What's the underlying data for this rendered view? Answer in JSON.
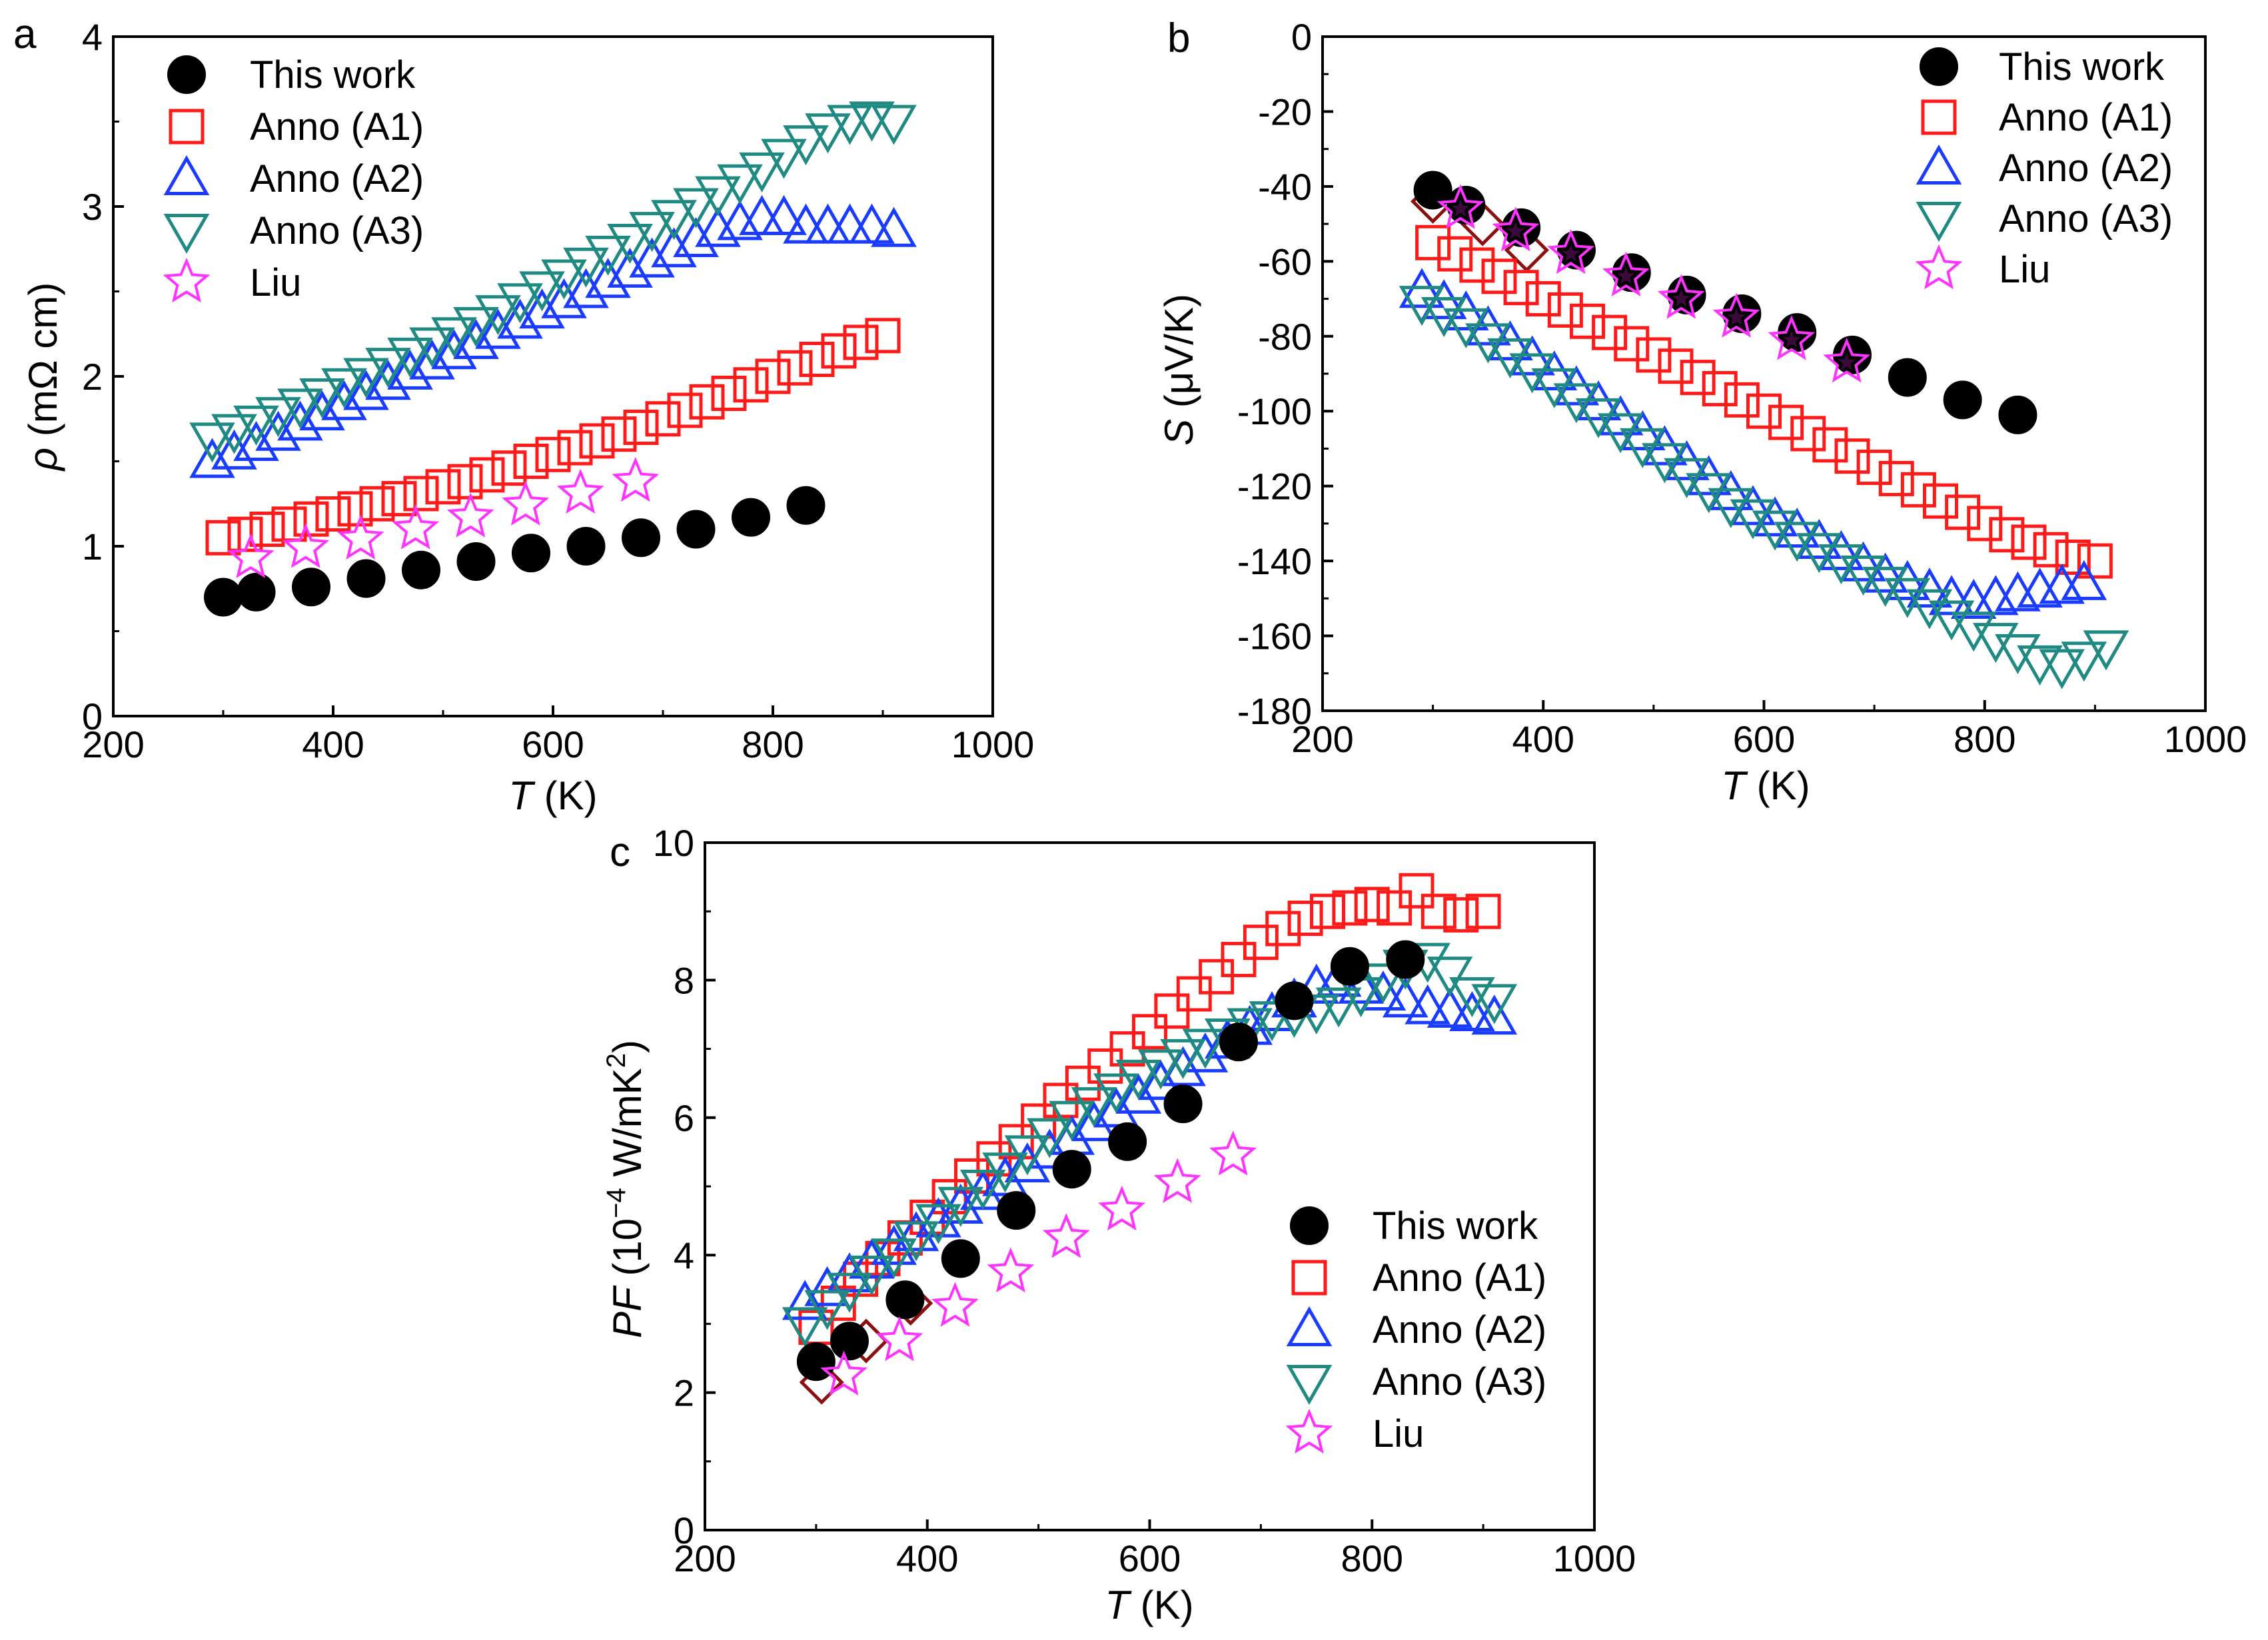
{
  "colors": {
    "this_work": "#000000",
    "anno_a1": "#ff1a1a",
    "anno_a2": "#1a3cff",
    "anno_a3": "#1f8a82",
    "liu": "#ff33ff",
    "dark_red": "#8b1010"
  },
  "chart_data": [
    {
      "type": "scatter",
      "panel_label": "a",
      "xlabel_var": "T",
      "xlabel_unit": " (K)",
      "ylabel_var": "ρ",
      "ylabel_unit": " (mΩ cm)",
      "xlim": [
        200,
        1000
      ],
      "ylim": [
        0,
        4
      ],
      "xticks": [
        200,
        400,
        600,
        800,
        1000
      ],
      "yticks": [
        0,
        1,
        2,
        3,
        4
      ],
      "legend_position": "top-left",
      "series": [
        {
          "name": "This work",
          "marker": "circle",
          "color_key": "this_work",
          "x": [
            300,
            330,
            380,
            430,
            480,
            530,
            580,
            630,
            680,
            730,
            780,
            830
          ],
          "y": [
            0.7,
            0.73,
            0.76,
            0.81,
            0.86,
            0.91,
            0.96,
            1.0,
            1.05,
            1.1,
            1.17,
            1.24
          ]
        },
        {
          "name": "Anno (A1)",
          "marker": "square",
          "color_key": "anno_a1",
          "x": [
            300,
            320,
            340,
            360,
            380,
            400,
            420,
            440,
            460,
            480,
            500,
            520,
            540,
            560,
            580,
            600,
            620,
            640,
            660,
            680,
            700,
            720,
            740,
            760,
            780,
            800,
            820,
            840,
            860,
            880,
            900
          ],
          "y": [
            1.05,
            1.07,
            1.1,
            1.13,
            1.16,
            1.19,
            1.22,
            1.25,
            1.28,
            1.31,
            1.35,
            1.38,
            1.42,
            1.46,
            1.5,
            1.54,
            1.58,
            1.62,
            1.66,
            1.7,
            1.75,
            1.8,
            1.85,
            1.9,
            1.95,
            2.0,
            2.05,
            2.1,
            2.15,
            2.2,
            2.24
          ]
        },
        {
          "name": "Anno (A2)",
          "marker": "triangle-up",
          "color_key": "anno_a2",
          "x": [
            290,
            310,
            330,
            350,
            370,
            390,
            410,
            430,
            450,
            470,
            490,
            510,
            530,
            550,
            570,
            590,
            610,
            630,
            650,
            670,
            690,
            710,
            730,
            750,
            770,
            790,
            810,
            830,
            850,
            870,
            890,
            910
          ],
          "y": [
            1.5,
            1.55,
            1.6,
            1.66,
            1.72,
            1.78,
            1.84,
            1.9,
            1.96,
            2.02,
            2.08,
            2.14,
            2.2,
            2.26,
            2.32,
            2.38,
            2.44,
            2.5,
            2.56,
            2.62,
            2.68,
            2.74,
            2.8,
            2.86,
            2.9,
            2.93,
            2.93,
            2.88,
            2.88,
            2.88,
            2.88,
            2.86
          ]
        },
        {
          "name": "Anno (A3)",
          "marker": "triangle-down",
          "color_key": "anno_a3",
          "x": [
            290,
            310,
            330,
            350,
            370,
            390,
            410,
            430,
            450,
            470,
            490,
            510,
            530,
            550,
            570,
            590,
            610,
            630,
            650,
            670,
            690,
            710,
            730,
            750,
            770,
            790,
            810,
            830,
            850,
            870,
            890,
            910
          ],
          "y": [
            1.63,
            1.68,
            1.73,
            1.78,
            1.83,
            1.89,
            1.95,
            2.01,
            2.07,
            2.13,
            2.19,
            2.25,
            2.31,
            2.38,
            2.45,
            2.52,
            2.59,
            2.66,
            2.73,
            2.8,
            2.87,
            2.94,
            3.01,
            3.08,
            3.15,
            3.22,
            3.3,
            3.38,
            3.45,
            3.5,
            3.52,
            3.5
          ]
        },
        {
          "name": "Liu",
          "marker": "star",
          "color_key": "liu",
          "x": [
            325,
            375,
            425,
            475,
            525,
            575,
            625,
            675
          ],
          "y": [
            0.93,
            0.99,
            1.04,
            1.1,
            1.17,
            1.24,
            1.31,
            1.38
          ]
        }
      ]
    },
    {
      "type": "scatter",
      "panel_label": "b",
      "xlabel_var": "T",
      "xlabel_unit": " (K)",
      "ylabel_var": "S",
      "ylabel_unit": " (μV/K)",
      "xlim": [
        200,
        1000
      ],
      "ylim": [
        -180,
        0
      ],
      "xticks": [
        200,
        400,
        600,
        800,
        1000
      ],
      "yticks": [
        -180,
        -160,
        -140,
        -120,
        -100,
        -80,
        -60,
        -40,
        -20,
        0
      ],
      "legend_position": "top-right",
      "series": [
        {
          "name": "This work",
          "marker": "circle",
          "color_key": "this_work",
          "x": [
            300,
            330,
            380,
            430,
            480,
            530,
            580,
            630,
            680,
            730,
            780,
            830
          ],
          "y": [
            -41,
            -45,
            -51,
            -57,
            -63,
            -69,
            -74,
            -79,
            -85,
            -91,
            -97,
            -101
          ]
        },
        {
          "name": "Anno (A1)",
          "marker": "square",
          "color_key": "anno_a1",
          "x": [
            300,
            320,
            340,
            360,
            380,
            400,
            420,
            440,
            460,
            480,
            500,
            520,
            540,
            560,
            580,
            600,
            620,
            640,
            660,
            680,
            700,
            720,
            740,
            760,
            780,
            800,
            820,
            840,
            860,
            880,
            900
          ],
          "y": [
            -55,
            -58,
            -61,
            -64,
            -67,
            -70,
            -73,
            -76,
            -79,
            -82,
            -85,
            -88,
            -91,
            -94,
            -97,
            -100,
            -103,
            -106,
            -109,
            -112,
            -115,
            -118,
            -121,
            -124,
            -127,
            -130,
            -133,
            -135,
            -137,
            -139,
            -140
          ]
        },
        {
          "name": "Anno (A2)",
          "marker": "triangle-up",
          "color_key": "anno_a2",
          "x": [
            290,
            310,
            330,
            350,
            370,
            390,
            410,
            430,
            450,
            470,
            490,
            510,
            530,
            550,
            570,
            590,
            610,
            630,
            650,
            670,
            690,
            710,
            730,
            750,
            770,
            790,
            810,
            830,
            850,
            870,
            890
          ],
          "y": [
            -68,
            -71,
            -74,
            -78,
            -82,
            -86,
            -90,
            -94,
            -98,
            -102,
            -106,
            -110,
            -114,
            -118,
            -122,
            -126,
            -129,
            -132,
            -135,
            -138,
            -141,
            -144,
            -146,
            -148,
            -150,
            -151,
            -150,
            -149,
            -148,
            -147,
            -146
          ]
        },
        {
          "name": "Anno (A3)",
          "marker": "triangle-down",
          "color_key": "anno_a3",
          "x": [
            290,
            310,
            330,
            350,
            370,
            390,
            410,
            430,
            450,
            470,
            490,
            510,
            530,
            550,
            570,
            590,
            610,
            630,
            650,
            670,
            690,
            710,
            730,
            750,
            770,
            790,
            810,
            830,
            850,
            870,
            890,
            910
          ],
          "y": [
            -71,
            -74,
            -77,
            -81,
            -85,
            -89,
            -93,
            -97,
            -101,
            -105,
            -109,
            -113,
            -117,
            -121,
            -125,
            -128,
            -131,
            -134,
            -137,
            -140,
            -143,
            -146,
            -149,
            -152,
            -155,
            -158,
            -161,
            -164,
            -167,
            -168,
            -166,
            -163
          ]
        },
        {
          "name": "Liu",
          "marker": "star",
          "color_key": "liu",
          "x": [
            325,
            375,
            425,
            475,
            525,
            575,
            625,
            675
          ],
          "y": [
            -46,
            -52,
            -58,
            -64,
            -70,
            -75,
            -81,
            -87
          ]
        }
      ],
      "extra_series": [
        {
          "name": "unlabeled",
          "marker": "diamond",
          "color_key": "dark_red",
          "x": [
            300,
            345,
            385
          ],
          "y": [
            -44,
            -50,
            -57
          ]
        }
      ]
    },
    {
      "type": "scatter",
      "panel_label": "c",
      "xlabel_var": "T",
      "xlabel_unit": " (K)",
      "ylabel_var": "PF",
      "ylabel_unit_pre": " (10",
      "ylabel_unit_sup1": "−4",
      "ylabel_unit_mid": " W/mK",
      "ylabel_unit_sup2": "2",
      "ylabel_unit_post": ")",
      "xlim": [
        200,
        1000
      ],
      "ylim": [
        0,
        10
      ],
      "xticks": [
        200,
        400,
        600,
        800,
        1000
      ],
      "yticks": [
        0,
        2,
        4,
        6,
        8,
        10
      ],
      "legend_position": "bottom-right",
      "series": [
        {
          "name": "This work",
          "marker": "circle",
          "color_key": "this_work",
          "x": [
            300,
            330,
            380,
            430,
            480,
            530,
            580,
            630,
            680,
            730,
            780,
            830
          ],
          "y": [
            2.45,
            2.75,
            3.35,
            3.95,
            4.65,
            5.25,
            5.65,
            6.2,
            7.1,
            7.7,
            8.2,
            8.3
          ]
        },
        {
          "name": "Anno (A1)",
          "marker": "square",
          "color_key": "anno_a1",
          "x": [
            300,
            320,
            340,
            360,
            380,
            400,
            420,
            440,
            460,
            480,
            500,
            520,
            540,
            560,
            580,
            600,
            620,
            640,
            660,
            680,
            700,
            720,
            740,
            760,
            780,
            800,
            820,
            840,
            860,
            880,
            900
          ],
          "y": [
            2.95,
            3.3,
            3.65,
            3.95,
            4.25,
            4.55,
            4.85,
            5.15,
            5.4,
            5.65,
            5.95,
            6.25,
            6.5,
            6.75,
            7.0,
            7.25,
            7.55,
            7.8,
            8.05,
            8.3,
            8.55,
            8.75,
            8.9,
            9.0,
            9.05,
            9.1,
            9.05,
            9.3,
            9.0,
            8.95,
            9.0
          ]
        },
        {
          "name": "Anno (A2)",
          "marker": "triangle-up",
          "color_key": "anno_a2",
          "x": [
            290,
            310,
            330,
            350,
            370,
            390,
            410,
            430,
            450,
            470,
            490,
            510,
            530,
            550,
            570,
            590,
            610,
            630,
            650,
            670,
            690,
            710,
            730,
            750,
            770,
            790,
            810,
            830,
            850,
            870,
            890,
            910
          ],
          "y": [
            3.3,
            3.5,
            3.7,
            3.9,
            4.1,
            4.3,
            4.5,
            4.7,
            4.9,
            5.1,
            5.3,
            5.5,
            5.7,
            5.9,
            6.1,
            6.3,
            6.5,
            6.7,
            6.9,
            7.1,
            7.3,
            7.5,
            7.7,
            7.9,
            8.0,
            7.9,
            7.8,
            7.7,
            7.6,
            7.55,
            7.5,
            7.45
          ]
        },
        {
          "name": "Anno (A3)",
          "marker": "triangle-down",
          "color_key": "anno_a3",
          "x": [
            290,
            310,
            330,
            350,
            370,
            390,
            410,
            430,
            450,
            470,
            490,
            510,
            530,
            550,
            570,
            590,
            610,
            630,
            650,
            670,
            690,
            710,
            730,
            750,
            770,
            790,
            810,
            830,
            850,
            870,
            890,
            910
          ],
          "y": [
            3.0,
            3.25,
            3.5,
            3.75,
            4.0,
            4.25,
            4.5,
            4.75,
            5.0,
            5.25,
            5.5,
            5.75,
            6.0,
            6.2,
            6.4,
            6.6,
            6.75,
            6.9,
            7.05,
            7.2,
            7.35,
            7.45,
            7.5,
            7.55,
            7.65,
            7.8,
            8.0,
            8.2,
            8.3,
            8.1,
            7.8,
            7.7
          ]
        },
        {
          "name": "Liu",
          "marker": "star",
          "color_key": "liu",
          "x": [
            325,
            375,
            425,
            475,
            525,
            575,
            625,
            675
          ],
          "y": [
            2.25,
            2.75,
            3.25,
            3.75,
            4.25,
            4.65,
            5.05,
            5.45
          ]
        }
      ],
      "extra_series": [
        {
          "name": "unlabeled",
          "marker": "diamond",
          "color_key": "dark_red",
          "x": [
            305,
            345,
            385
          ],
          "y": [
            2.15,
            2.75,
            3.3
          ]
        }
      ]
    }
  ]
}
